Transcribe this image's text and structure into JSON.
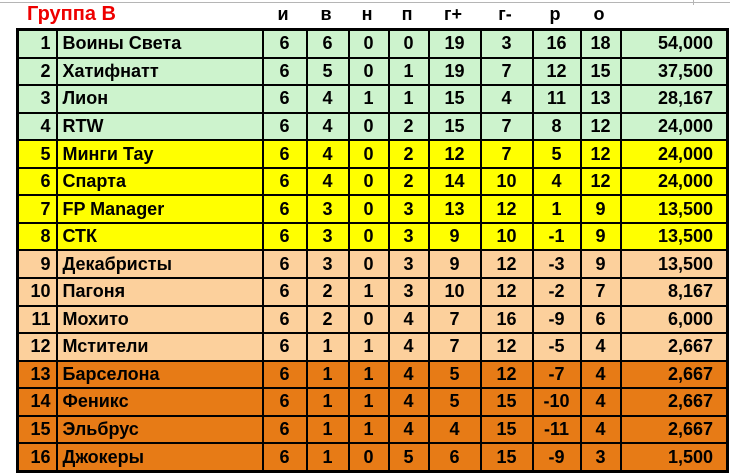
{
  "header": {
    "group_label": "Группа В"
  },
  "colors": {
    "band_green": "#cdf3cd",
    "band_yellow": "#ffff00",
    "band_peach": "#fcd09c",
    "band_orange": "#e77b16",
    "title_red": "#ee0000",
    "grid_black": "#000000",
    "top_gridline_gray": "#b5b5b5"
  },
  "chart_data": {
    "type": "table",
    "title": "Группа В",
    "columns": [
      "и",
      "в",
      "н",
      "п",
      "г+",
      "г-",
      "р",
      "о"
    ],
    "legend_note_bands": [
      "rows 1-4 green",
      "rows 5-8 yellow",
      "rows 9-12 peach",
      "rows 13-16 orange"
    ],
    "rows": [
      {
        "pos": "1",
        "team": "Воины Света",
        "i": "6",
        "v": "6",
        "n": "0",
        "p": "0",
        "g_plus": "19",
        "g_minus": "3",
        "r": "16",
        "o": "18",
        "rating": "54,000",
        "band": "green"
      },
      {
        "pos": "2",
        "team": "Хатифнатт",
        "i": "6",
        "v": "5",
        "n": "0",
        "p": "1",
        "g_plus": "19",
        "g_minus": "7",
        "r": "12",
        "o": "15",
        "rating": "37,500",
        "band": "green"
      },
      {
        "pos": "3",
        "team": "Лион",
        "i": "6",
        "v": "4",
        "n": "1",
        "p": "1",
        "g_plus": "15",
        "g_minus": "4",
        "r": "11",
        "o": "13",
        "rating": "28,167",
        "band": "green"
      },
      {
        "pos": "4",
        "team": "RTW",
        "i": "6",
        "v": "4",
        "n": "0",
        "p": "2",
        "g_plus": "15",
        "g_minus": "7",
        "r": "8",
        "o": "12",
        "rating": "24,000",
        "band": "green"
      },
      {
        "pos": "5",
        "team": "Минги Тау",
        "i": "6",
        "v": "4",
        "n": "0",
        "p": "2",
        "g_plus": "12",
        "g_minus": "7",
        "r": "5",
        "o": "12",
        "rating": "24,000",
        "band": "yellow"
      },
      {
        "pos": "6",
        "team": "Спарта",
        "i": "6",
        "v": "4",
        "n": "0",
        "p": "2",
        "g_plus": "14",
        "g_minus": "10",
        "r": "4",
        "o": "12",
        "rating": "24,000",
        "band": "yellow"
      },
      {
        "pos": "7",
        "team": "FP Manager",
        "i": "6",
        "v": "3",
        "n": "0",
        "p": "3",
        "g_plus": "13",
        "g_minus": "12",
        "r": "1",
        "o": "9",
        "rating": "13,500",
        "band": "yellow"
      },
      {
        "pos": "8",
        "team": "СТК",
        "i": "6",
        "v": "3",
        "n": "0",
        "p": "3",
        "g_plus": "9",
        "g_minus": "10",
        "r": "-1",
        "o": "9",
        "rating": "13,500",
        "band": "yellow"
      },
      {
        "pos": "9",
        "team": "Декабристы",
        "i": "6",
        "v": "3",
        "n": "0",
        "p": "3",
        "g_plus": "9",
        "g_minus": "12",
        "r": "-3",
        "o": "9",
        "rating": "13,500",
        "band": "peach"
      },
      {
        "pos": "10",
        "team": "Пагоня",
        "i": "6",
        "v": "2",
        "n": "1",
        "p": "3",
        "g_plus": "10",
        "g_minus": "12",
        "r": "-2",
        "o": "7",
        "rating": "8,167",
        "band": "peach"
      },
      {
        "pos": "11",
        "team": "Мохито",
        "i": "6",
        "v": "2",
        "n": "0",
        "p": "4",
        "g_plus": "7",
        "g_minus": "16",
        "r": "-9",
        "o": "6",
        "rating": "6,000",
        "band": "peach"
      },
      {
        "pos": "12",
        "team": "Мстители",
        "i": "6",
        "v": "1",
        "n": "1",
        "p": "4",
        "g_plus": "7",
        "g_minus": "12",
        "r": "-5",
        "o": "4",
        "rating": "2,667",
        "band": "peach"
      },
      {
        "pos": "13",
        "team": "Барселона",
        "i": "6",
        "v": "1",
        "n": "1",
        "p": "4",
        "g_plus": "5",
        "g_minus": "12",
        "r": "-7",
        "o": "4",
        "rating": "2,667",
        "band": "orange"
      },
      {
        "pos": "14",
        "team": "Феникс",
        "i": "6",
        "v": "1",
        "n": "1",
        "p": "4",
        "g_plus": "5",
        "g_minus": "15",
        "r": "-10",
        "o": "4",
        "rating": "2,667",
        "band": "orange"
      },
      {
        "pos": "15",
        "team": "Эльбрус",
        "i": "6",
        "v": "1",
        "n": "1",
        "p": "4",
        "g_plus": "4",
        "g_minus": "15",
        "r": "-11",
        "o": "4",
        "rating": "2,667",
        "band": "orange"
      },
      {
        "pos": "16",
        "team": "Джокеры",
        "i": "6",
        "v": "1",
        "n": "0",
        "p": "5",
        "g_plus": "6",
        "g_minus": "15",
        "r": "-9",
        "o": "3",
        "rating": "1,500",
        "band": "orange"
      }
    ]
  }
}
